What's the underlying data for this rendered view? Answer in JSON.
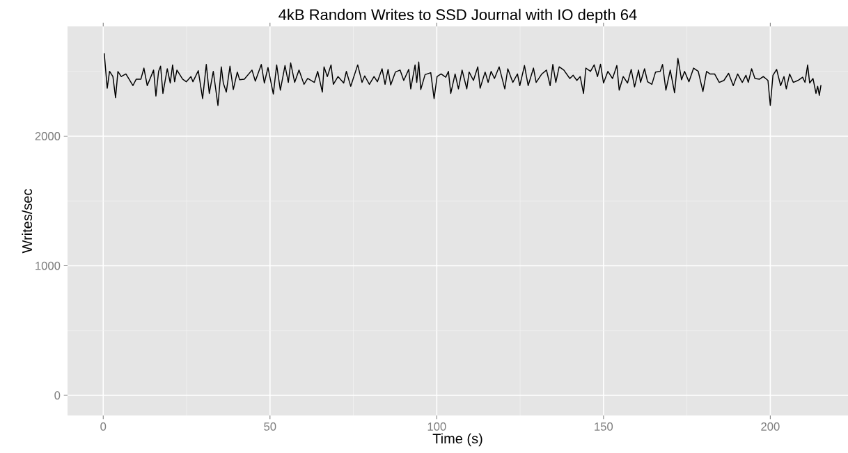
{
  "chart_data": {
    "type": "line",
    "title": "4kB Random Writes to SSD Journal with IO depth 64",
    "xlabel": "Time (s)",
    "ylabel": "Writes/sec",
    "color": "#000000",
    "grid": true,
    "marker": "none",
    "line_style": "solid",
    "xlim": [
      -10.7,
      223.3
    ],
    "ylim": [
      -155,
      2847
    ],
    "xticks": [
      0,
      50,
      100,
      150,
      200
    ],
    "yticks": [
      0,
      1000,
      2000
    ],
    "x": [
      0.3,
      1.2,
      1.9,
      2.9,
      3.7,
      4.4,
      5.4,
      6.8,
      8.9,
      9.9,
      11.3,
      12.2,
      13.2,
      15.1,
      15.8,
      16.6,
      17.2,
      17.9,
      19.2,
      20.1,
      20.8,
      21.4,
      22.1,
      23.8,
      24.9,
      26.3,
      26.9,
      28.5,
      29.8,
      30.9,
      31.8,
      33.0,
      34.4,
      35.4,
      36.0,
      36.9,
      38.0,
      39.0,
      40.2,
      40.9,
      42.3,
      44.6,
      45.6,
      47.4,
      48.3,
      49.4,
      51.0,
      52.0,
      53.1,
      54.5,
      55.5,
      56.2,
      57.4,
      58.7,
      60.2,
      61.3,
      63.3,
      64.3,
      65.7,
      66.2,
      67.2,
      68.3,
      69.0,
      70.4,
      72.1,
      72.9,
      74.2,
      76.3,
      77.6,
      78.4,
      79.8,
      81.2,
      82.2,
      83.6,
      84.5,
      85.4,
      86.2,
      87.6,
      89.0,
      90.1,
      91.6,
      92.2,
      93.5,
      94.0,
      94.6,
      95.2,
      96.5,
      98.2,
      99.2,
      100.1,
      101.3,
      102.7,
      103.5,
      104.2,
      105.5,
      106.5,
      107.6,
      109.0,
      109.7,
      111.0,
      112.3,
      113.0,
      114.5,
      115.4,
      116.3,
      117.3,
      118.7,
      120.4,
      121.3,
      122.8,
      124.2,
      124.9,
      126.3,
      127.4,
      129.0,
      129.8,
      131.5,
      132.9,
      134.0,
      134.8,
      135.7,
      136.7,
      138.1,
      139.9,
      140.9,
      142.0,
      143.0,
      144.0,
      144.7,
      146.1,
      147.2,
      148.2,
      149.1,
      150.0,
      151.3,
      152.7,
      154.0,
      154.7,
      155.9,
      157.2,
      158.3,
      159.3,
      160.5,
      161.1,
      162.3,
      163.2,
      164.5,
      165.6,
      167.0,
      167.7,
      168.7,
      170.0,
      171.3,
      172.3,
      173.4,
      174.3,
      175.6,
      177.0,
      178.4,
      179.8,
      180.9,
      181.9,
      183.3,
      184.7,
      186.1,
      187.5,
      188.9,
      190.2,
      191.6,
      192.7,
      193.4,
      194.4,
      195.4,
      196.8,
      197.9,
      199.3,
      200.0,
      200.8,
      201.9,
      203.1,
      204.1,
      204.8,
      205.8,
      206.9,
      208.3,
      209.7,
      210.4,
      211.2,
      211.8,
      212.8,
      213.7,
      214.2,
      214.7,
      215.2
    ],
    "values": [
      2640,
      2370,
      2500,
      2460,
      2297,
      2499,
      2460,
      2480,
      2390,
      2440,
      2440,
      2525,
      2390,
      2510,
      2310,
      2500,
      2540,
      2330,
      2520,
      2410,
      2550,
      2420,
      2510,
      2440,
      2420,
      2460,
      2420,
      2505,
      2290,
      2553,
      2330,
      2500,
      2237,
      2535,
      2410,
      2340,
      2540,
      2360,
      2495,
      2435,
      2440,
      2510,
      2425,
      2553,
      2410,
      2530,
      2325,
      2550,
      2355,
      2545,
      2415,
      2565,
      2415,
      2510,
      2400,
      2445,
      2415,
      2500,
      2340,
      2535,
      2460,
      2550,
      2400,
      2460,
      2410,
      2500,
      2385,
      2550,
      2415,
      2465,
      2400,
      2460,
      2420,
      2520,
      2400,
      2515,
      2395,
      2495,
      2510,
      2430,
      2515,
      2365,
      2550,
      2415,
      2572,
      2360,
      2475,
      2490,
      2290,
      2460,
      2480,
      2455,
      2500,
      2330,
      2480,
      2365,
      2510,
      2365,
      2495,
      2430,
      2535,
      2370,
      2495,
      2415,
      2500,
      2445,
      2535,
      2365,
      2520,
      2415,
      2480,
      2390,
      2545,
      2390,
      2525,
      2415,
      2480,
      2510,
      2390,
      2553,
      2415,
      2535,
      2510,
      2445,
      2470,
      2430,
      2460,
      2330,
      2525,
      2500,
      2550,
      2460,
      2555,
      2410,
      2500,
      2445,
      2545,
      2355,
      2460,
      2410,
      2515,
      2380,
      2510,
      2415,
      2520,
      2420,
      2400,
      2495,
      2500,
      2553,
      2355,
      2510,
      2335,
      2600,
      2435,
      2500,
      2420,
      2525,
      2500,
      2345,
      2500,
      2480,
      2480,
      2415,
      2430,
      2485,
      2390,
      2480,
      2415,
      2470,
      2415,
      2520,
      2445,
      2440,
      2460,
      2430,
      2237,
      2470,
      2515,
      2390,
      2460,
      2365,
      2480,
      2415,
      2430,
      2455,
      2415,
      2550,
      2410,
      2445,
      2330,
      2385,
      2315,
      2395
    ]
  }
}
